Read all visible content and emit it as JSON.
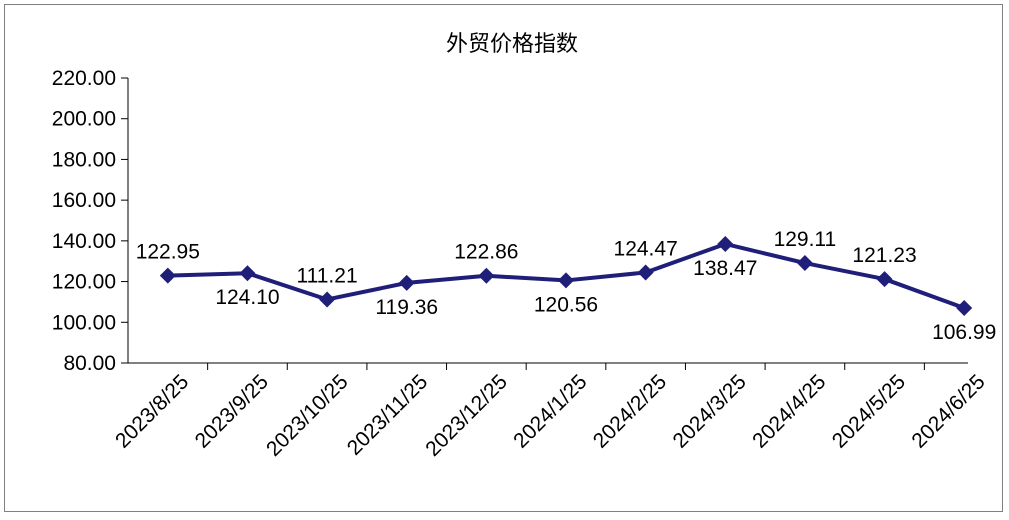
{
  "chart_data": {
    "type": "line",
    "title": "外贸价格指数",
    "xlabel": "",
    "ylabel": "",
    "categories": [
      "2023/8/25",
      "2023/9/25",
      "2023/10/25",
      "2023/11/25",
      "2023/12/25",
      "2024/1/25",
      "2024/2/25",
      "2024/3/25",
      "2024/4/25",
      "2024/5/25",
      "2024/6/25"
    ],
    "series": [
      {
        "values": [
          122.95,
          124.1,
          111.21,
          119.36,
          122.86,
          120.56,
          124.47,
          138.47,
          129.11,
          121.23,
          106.99
        ],
        "labels": [
          "122.95",
          "124.10",
          "111.21",
          "119.36",
          "122.86",
          "120.56",
          "124.47",
          "138.47",
          "129.11",
          "121.23",
          "106.99"
        ]
      }
    ],
    "ylim": [
      80,
      220
    ],
    "yticks": [
      "220.00",
      "200.00",
      "180.00",
      "160.00",
      "140.00",
      "120.00",
      "100.00",
      "80.00"
    ],
    "grid": false,
    "legend": "none",
    "colors": {
      "line": "#1f1f7a",
      "marker": "#1f1f7a",
      "axis": "#000000"
    }
  }
}
